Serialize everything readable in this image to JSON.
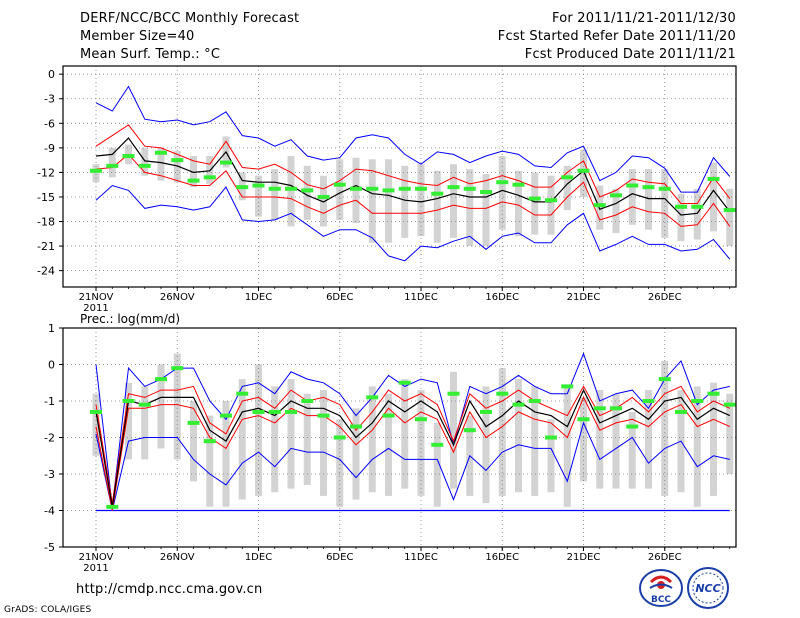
{
  "header": {
    "title": "DERF/NCC/BCC Monthly Forecast",
    "member_size": "Member Size=40",
    "variable": "Mean Surf. Temp.: °C",
    "period": "For 2011/11/21-2011/12/30",
    "started": "Fcst Started Refer Date 2011/11/20",
    "produced": "Fcst Produced Date 2011/11/21"
  },
  "footer": {
    "url": "http://cmdp.ncc.cma.gov.cn",
    "grads": "GrADS: COLA/IGES",
    "logo_bcc": "BCC",
    "logo_ncc": "NCC"
  },
  "colors": {
    "envelope": "#0000ff",
    "spread": "#ff0000",
    "mean": "#000000",
    "median": "#33ee33",
    "bar": "#d3d3d3",
    "grid": "#808080"
  },
  "chart_data": [
    {
      "type": "line",
      "panel": "temperature",
      "title": "Mean Surf. Temp.: °C",
      "ylim": [
        -26,
        1
      ],
      "yticks": [
        0,
        -3,
        -6,
        -9,
        -12,
        -15,
        -18,
        -21,
        -24
      ],
      "ytick_labels": [
        "0",
        "-3",
        "-6",
        "-9",
        "-12",
        "-15",
        "-18",
        "-21",
        "-24"
      ],
      "xticks": [
        0,
        5,
        10,
        15,
        20,
        25,
        30,
        35
      ],
      "xtick_labels": [
        "21NOV",
        "26NOV",
        "1DEC",
        "6DEC",
        "11DEC",
        "16DEC",
        "21DEC",
        "26DEC"
      ],
      "x_year_label": "2011",
      "days": 40,
      "series": [
        {
          "name": "max",
          "values": [
            -3.5,
            -4.5,
            -1.5,
            -5.5,
            -5.8,
            -5.6,
            -6.2,
            -5.8,
            -4.6,
            -7.5,
            -7.8,
            -8.8,
            -8.0,
            -10.0,
            -10.5,
            -10.2,
            -7.8,
            -7.4,
            -7.8,
            -9.8,
            -11.0,
            -9.5,
            -9.8,
            -10.8,
            -10.0,
            -9.4,
            -9.8,
            -11.2,
            -11.4,
            -9.6,
            -8.8,
            -13.0,
            -12.0,
            -10.0,
            -10.2,
            -11.5,
            -14.4,
            -14.4,
            -10.2,
            -12.5
          ]
        },
        {
          "name": "upper",
          "values": [
            -8.8,
            -7.5,
            -6.2,
            -8.8,
            -9.0,
            -9.8,
            -10.6,
            -11.0,
            -8.2,
            -11.4,
            -11.6,
            -11.0,
            -12.0,
            -13.5,
            -14.0,
            -13.0,
            -11.6,
            -11.8,
            -12.4,
            -13.0,
            -13.4,
            -13.6,
            -12.6,
            -13.4,
            -13.0,
            -12.4,
            -13.0,
            -13.8,
            -13.8,
            -12.0,
            -10.6,
            -15.0,
            -14.2,
            -12.8,
            -13.2,
            -13.4,
            -15.8,
            -15.8,
            -12.6,
            -15.2
          ]
        },
        {
          "name": "mean",
          "values": [
            -10.0,
            -9.8,
            -7.8,
            -10.6,
            -10.8,
            -11.2,
            -12.0,
            -11.8,
            -9.5,
            -13.0,
            -13.2,
            -13.2,
            -13.6,
            -14.8,
            -15.6,
            -14.5,
            -13.6,
            -14.6,
            -14.8,
            -15.4,
            -15.6,
            -15.2,
            -14.6,
            -15.0,
            -15.0,
            -14.2,
            -14.8,
            -15.6,
            -15.6,
            -13.4,
            -11.8,
            -16.5,
            -15.8,
            -14.6,
            -15.2,
            -15.2,
            -17.2,
            -17.0,
            -14.2,
            -16.8
          ]
        },
        {
          "name": "lower",
          "values": [
            -11.6,
            -11.4,
            -9.8,
            -12.0,
            -12.4,
            -13.0,
            -13.6,
            -13.6,
            -11.8,
            -15.0,
            -15.0,
            -15.0,
            -15.2,
            -16.2,
            -17.0,
            -16.0,
            -15.4,
            -17.0,
            -17.0,
            -17.0,
            -17.0,
            -16.6,
            -16.0,
            -16.4,
            -16.4,
            -15.6,
            -16.0,
            -17.2,
            -17.2,
            -15.0,
            -13.2,
            -17.8,
            -17.2,
            -16.2,
            -16.8,
            -17.0,
            -18.6,
            -18.4,
            -15.8,
            -18.6
          ]
        },
        {
          "name": "min",
          "values": [
            -15.4,
            -13.6,
            -14.2,
            -16.4,
            -16.0,
            -16.2,
            -16.6,
            -16.2,
            -13.8,
            -17.8,
            -18.0,
            -17.8,
            -17.0,
            -18.4,
            -19.8,
            -19.0,
            -19.0,
            -20.0,
            -22.2,
            -22.8,
            -21.0,
            -21.2,
            -20.4,
            -19.8,
            -21.4,
            -19.8,
            -19.4,
            -20.6,
            -20.6,
            -18.4,
            -17.0,
            -21.6,
            -20.8,
            -19.8,
            -20.8,
            -20.8,
            -21.6,
            -21.4,
            -20.2,
            -22.6
          ]
        },
        {
          "name": "median",
          "values": [
            -11.8,
            -11.2,
            -10.0,
            -11.2,
            -9.6,
            -10.5,
            -13.0,
            -12.6,
            -10.8,
            -13.8,
            -13.6,
            -14.0,
            -14.0,
            -14.2,
            -15.0,
            -13.5,
            -14.0,
            -14.0,
            -14.2,
            -14.0,
            -14.0,
            -14.6,
            -13.8,
            -14.0,
            -14.4,
            -13.2,
            -13.5,
            -15.2,
            -15.4,
            -12.6,
            -11.8,
            -16.0,
            -14.8,
            -13.6,
            -13.8,
            -14.0,
            -16.2,
            -16.2,
            -12.8,
            -16.6
          ]
        },
        {
          "name": "box_top",
          "values": [
            -11.0,
            -9.0,
            -8.6,
            -9.0,
            -9.0,
            -9.4,
            -10.0,
            -10.0,
            -7.6,
            -12.0,
            -12.4,
            -11.6,
            -10.0,
            -11.2,
            -12.4,
            -10.4,
            -10.2,
            -10.4,
            -10.4,
            -11.2,
            -11.0,
            -11.8,
            -11.0,
            -11.6,
            -12.2,
            -10.0,
            -11.8,
            -12.0,
            -12.4,
            -11.2,
            -9.2,
            -13.6,
            -14.0,
            -11.6,
            -11.6,
            -11.6,
            -14.6,
            -14.0,
            -10.8,
            -14.0
          ]
        },
        {
          "name": "box_bottom",
          "values": [
            -13.2,
            -12.6,
            -11.0,
            -12.4,
            -13.0,
            -13.2,
            -13.8,
            -13.4,
            -11.4,
            -15.4,
            -17.4,
            -17.8,
            -18.6,
            -17.8,
            -18.6,
            -17.8,
            -18.2,
            -20.6,
            -20.6,
            -20.0,
            -19.8,
            -20.6,
            -20.0,
            -21.0,
            -21.0,
            -19.0,
            -19.8,
            -19.6,
            -19.6,
            -16.6,
            -15.0,
            -19.0,
            -19.4,
            -18.4,
            -19.0,
            -20.0,
            -20.4,
            -20.2,
            -19.2,
            -21.0
          ]
        }
      ]
    },
    {
      "type": "line",
      "panel": "precipitation",
      "title": "Prec.: log(mm/d)",
      "ylim": [
        -5,
        1
      ],
      "yticks": [
        1,
        0,
        -1,
        -2,
        -3,
        -4,
        -5
      ],
      "ytick_labels": [
        "1",
        "0",
        "-1",
        "-2",
        "-3",
        "-4",
        "-5"
      ],
      "xticks": [
        0,
        5,
        10,
        15,
        20,
        25,
        30,
        35
      ],
      "xtick_labels": [
        "21NOV",
        "26NOV",
        "1DEC",
        "6DEC",
        "11DEC",
        "16DEC",
        "21DEC",
        "26DEC"
      ],
      "x_year_label": "2011",
      "baseline": -4,
      "days": 40,
      "series": [
        {
          "name": "max",
          "values": [
            0.0,
            -3.9,
            -0.1,
            -0.6,
            -0.4,
            -0.1,
            -0.1,
            -1.0,
            -1.5,
            -0.6,
            -0.5,
            -0.8,
            -0.2,
            -0.4,
            -0.5,
            -0.8,
            -1.4,
            -0.9,
            -0.3,
            -0.6,
            -0.4,
            -0.5,
            -2.2,
            -0.6,
            -0.8,
            -0.6,
            -0.3,
            -0.6,
            -0.8,
            -0.8,
            0.3,
            -1.0,
            -0.8,
            -0.7,
            -1.2,
            -0.4,
            0.1,
            -1.1,
            -0.7,
            -0.6
          ]
        },
        {
          "name": "upper",
          "values": [
            -1.1,
            -3.8,
            -0.8,
            -0.9,
            -0.7,
            -0.7,
            -0.6,
            -1.6,
            -1.9,
            -1.0,
            -0.9,
            -1.2,
            -0.7,
            -1.0,
            -0.9,
            -1.1,
            -1.8,
            -1.3,
            -0.7,
            -1.0,
            -0.8,
            -1.1,
            -2.1,
            -0.8,
            -1.2,
            -1.0,
            -0.7,
            -1.0,
            -1.2,
            -1.4,
            -0.6,
            -1.4,
            -1.2,
            -0.9,
            -1.3,
            -0.8,
            -0.6,
            -1.3,
            -1.0,
            -1.2
          ]
        },
        {
          "name": "mean",
          "values": [
            -1.3,
            -3.9,
            -1.0,
            -1.1,
            -0.9,
            -0.9,
            -0.9,
            -1.8,
            -2.1,
            -1.3,
            -1.2,
            -1.4,
            -1.0,
            -1.2,
            -1.2,
            -1.4,
            -2.0,
            -1.6,
            -1.0,
            -1.3,
            -1.0,
            -1.3,
            -2.2,
            -1.0,
            -1.7,
            -1.4,
            -1.0,
            -1.3,
            -1.4,
            -1.7,
            -0.7,
            -1.6,
            -1.4,
            -1.2,
            -1.5,
            -1.0,
            -0.9,
            -1.5,
            -1.2,
            -1.4
          ]
        },
        {
          "name": "lower",
          "values": [
            -1.7,
            -4.0,
            -1.2,
            -1.2,
            -1.1,
            -1.1,
            -1.2,
            -2.0,
            -2.3,
            -1.5,
            -1.4,
            -1.6,
            -1.2,
            -1.4,
            -1.4,
            -1.7,
            -2.2,
            -1.8,
            -1.2,
            -1.6,
            -1.3,
            -1.5,
            -2.4,
            -1.3,
            -2.0,
            -1.7,
            -1.3,
            -1.5,
            -1.6,
            -2.0,
            -0.9,
            -1.8,
            -1.6,
            -1.5,
            -1.7,
            -1.3,
            -1.1,
            -1.7,
            -1.5,
            -1.7
          ]
        },
        {
          "name": "min",
          "values": [
            -1.9,
            -4.0,
            -2.1,
            -2.0,
            -2.0,
            -2.0,
            -2.6,
            -3.0,
            -3.3,
            -2.7,
            -2.4,
            -2.8,
            -2.3,
            -2.4,
            -2.4,
            -2.6,
            -3.1,
            -2.6,
            -2.3,
            -2.6,
            -2.6,
            -2.6,
            -3.7,
            -2.5,
            -2.9,
            -2.4,
            -2.2,
            -2.3,
            -2.3,
            -3.2,
            -1.6,
            -2.6,
            -2.3,
            -2.0,
            -2.7,
            -2.3,
            -2.1,
            -2.8,
            -2.5,
            -2.6
          ]
        },
        {
          "name": "median",
          "values": [
            -1.3,
            -3.9,
            -1.0,
            -1.1,
            -0.4,
            -0.1,
            -1.6,
            -2.1,
            -1.4,
            -0.8,
            -1.3,
            -1.3,
            -1.3,
            -1.0,
            -1.4,
            -2.0,
            -1.7,
            -0.9,
            -1.4,
            -0.5,
            -1.5,
            -2.2,
            -0.8,
            -1.8,
            -1.3,
            -0.8,
            -1.1,
            -1.0,
            -2.0,
            -0.6,
            -1.5,
            -1.2,
            -1.2,
            -1.7,
            -1.0,
            -0.4,
            -1.3,
            -1.0,
            -0.8,
            -1.1
          ]
        },
        {
          "name": "box_top",
          "values": [
            -0.8,
            -4.0,
            -0.5,
            -0.6,
            0.0,
            0.3,
            -1.0,
            -1.4,
            -1.0,
            -0.4,
            0.0,
            -0.6,
            -0.4,
            -0.8,
            -0.7,
            -1.5,
            -1.2,
            -0.6,
            -0.8,
            -0.4,
            -0.7,
            -1.6,
            -0.2,
            -1.4,
            -0.6,
            -0.1,
            -0.4,
            -0.6,
            -1.5,
            -0.6,
            -0.9,
            -0.7,
            -0.8,
            -1.3,
            -0.7,
            0.1,
            -0.7,
            -0.6,
            -0.5,
            -0.8
          ]
        },
        {
          "name": "box_bottom",
          "values": [
            -2.5,
            -4.0,
            -2.6,
            -2.6,
            -2.3,
            -2.6,
            -3.2,
            -3.9,
            -3.9,
            -3.7,
            -3.6,
            -3.5,
            -3.4,
            -3.3,
            -3.6,
            -3.9,
            -3.7,
            -3.5,
            -3.6,
            -3.4,
            -3.6,
            -3.9,
            -3.4,
            -3.6,
            -3.8,
            -3.6,
            -3.5,
            -3.6,
            -3.5,
            -3.9,
            -3.2,
            -3.4,
            -3.4,
            -3.4,
            -3.4,
            -3.6,
            -3.5,
            -3.9,
            -3.6,
            -3.0
          ]
        }
      ]
    }
  ]
}
